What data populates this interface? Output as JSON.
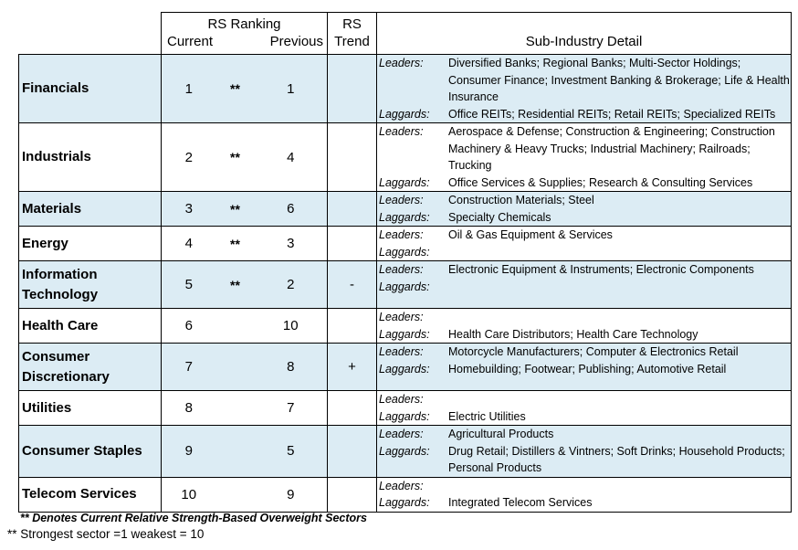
{
  "header": {
    "rs_ranking": "RS Ranking",
    "current": "Current",
    "previous": "Previous",
    "rs": "RS",
    "trend": "Trend",
    "detail": "Sub-Industry Detail"
  },
  "leaders_label": "Leaders:",
  "laggards_label": "Laggards:",
  "rows": [
    {
      "sector": "Financials",
      "current": "1",
      "stars": "**",
      "previous": "1",
      "trend": "",
      "leaders": "Diversified Banks; Regional Banks; Multi-Sector Holdings; Consumer Finance; Investment Banking & Brokerage; Life & Health Insurance",
      "laggards": "Office REITs; Residential REITs; Retail REITs; Specialized REITs"
    },
    {
      "sector": "Industrials",
      "current": "2",
      "stars": "**",
      "previous": "4",
      "trend": "",
      "leaders": "Aerospace & Defense; Construction & Engineering; Construction Machinery & Heavy Trucks; Industrial Machinery; Railroads; Trucking",
      "laggards": "Office Services & Supplies; Research & Consulting Services"
    },
    {
      "sector": "Materials",
      "current": "3",
      "stars": "**",
      "previous": "6",
      "trend": "",
      "leaders": "Construction Materials; Steel",
      "laggards": "Specialty Chemicals"
    },
    {
      "sector": "Energy",
      "current": "4",
      "stars": "**",
      "previous": "3",
      "trend": "",
      "leaders": "Oil & Gas Equipment & Services",
      "laggards": ""
    },
    {
      "sector": "Information Technology",
      "current": "5",
      "stars": "**",
      "previous": "2",
      "trend": "-",
      "leaders": "Electronic Equipment & Instruments; Electronic Components",
      "laggards": ""
    },
    {
      "sector": "Health Care",
      "current": "6",
      "stars": "",
      "previous": "10",
      "trend": "",
      "leaders": "",
      "laggards": "Health Care Distributors; Health Care Technology"
    },
    {
      "sector": "Consumer Discretionary",
      "current": "7",
      "stars": "",
      "previous": "8",
      "trend": "+",
      "leaders": "Motorcycle Manufacturers; Computer & Electronics Retail",
      "laggards": "Homebuilding; Footwear; Publishing; Automotive Retail"
    },
    {
      "sector": "Utilities",
      "current": "8",
      "stars": "",
      "previous": "7",
      "trend": "",
      "leaders": "",
      "laggards": "Electric Utilities"
    },
    {
      "sector": "Consumer Staples",
      "current": "9",
      "stars": "",
      "previous": "5",
      "trend": "",
      "leaders": "Agricultural Products",
      "laggards": "Drug Retail; Distillers & Vintners; Soft Drinks; Household Products; Personal Products"
    },
    {
      "sector": "Telecom Services",
      "current": "10",
      "stars": "",
      "previous": "9",
      "trend": "",
      "leaders": "",
      "laggards": "Integrated Telecom Services"
    }
  ],
  "footnote1": "** Denotes Current Relative Strength-Based Overweight Sectors",
  "footnote2": "** Strongest sector =1 weakest = 10",
  "colors": {
    "shade": "#dcecf4",
    "border": "#000000"
  }
}
